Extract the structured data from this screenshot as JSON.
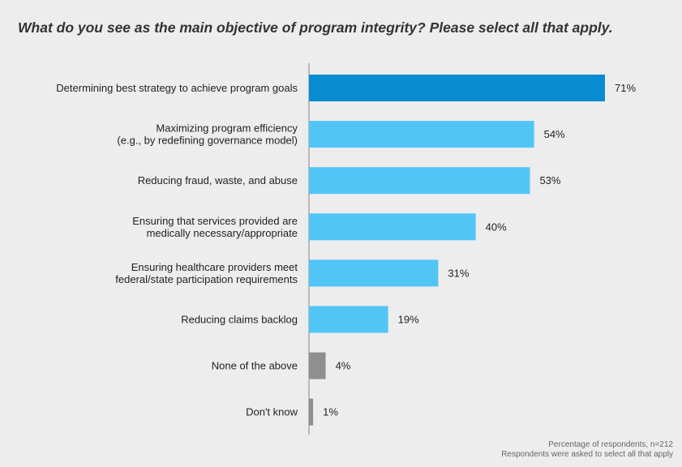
{
  "chart_data": {
    "type": "bar",
    "orientation": "horizontal",
    "title": "What do you see as the main objective of program integrity? Please select all that apply.",
    "categories": [
      [
        "Determining best strategy to achieve program goals"
      ],
      [
        "Maximizing program efficiency",
        "(e.g., by redefining governance model)"
      ],
      [
        "Reducing fraud, waste, and abuse"
      ],
      [
        "Ensuring that services provided are",
        "medically necessary/appropriate"
      ],
      [
        "Ensuring healthcare providers meet",
        "federal/state participation requirements"
      ],
      [
        "Reducing claims backlog"
      ],
      [
        "None of the above"
      ],
      [
        "Don't know"
      ]
    ],
    "values": [
      71,
      54,
      53,
      40,
      31,
      19,
      4,
      1
    ],
    "value_labels": [
      "71%",
      "54%",
      "53%",
      "40%",
      "31%",
      "19%",
      "4%",
      "1%"
    ],
    "bar_colors": [
      "#078bd1",
      "#52c5f7",
      "#52c5f7",
      "#52c5f7",
      "#52c5f7",
      "#52c5f7",
      "#8f8f8f",
      "#8f8f8f"
    ],
    "xlim": [
      0,
      71
    ],
    "grid": false,
    "notes": [
      "Percentage of respondents, n=212",
      "Respondents were asked to select all that apply"
    ]
  }
}
